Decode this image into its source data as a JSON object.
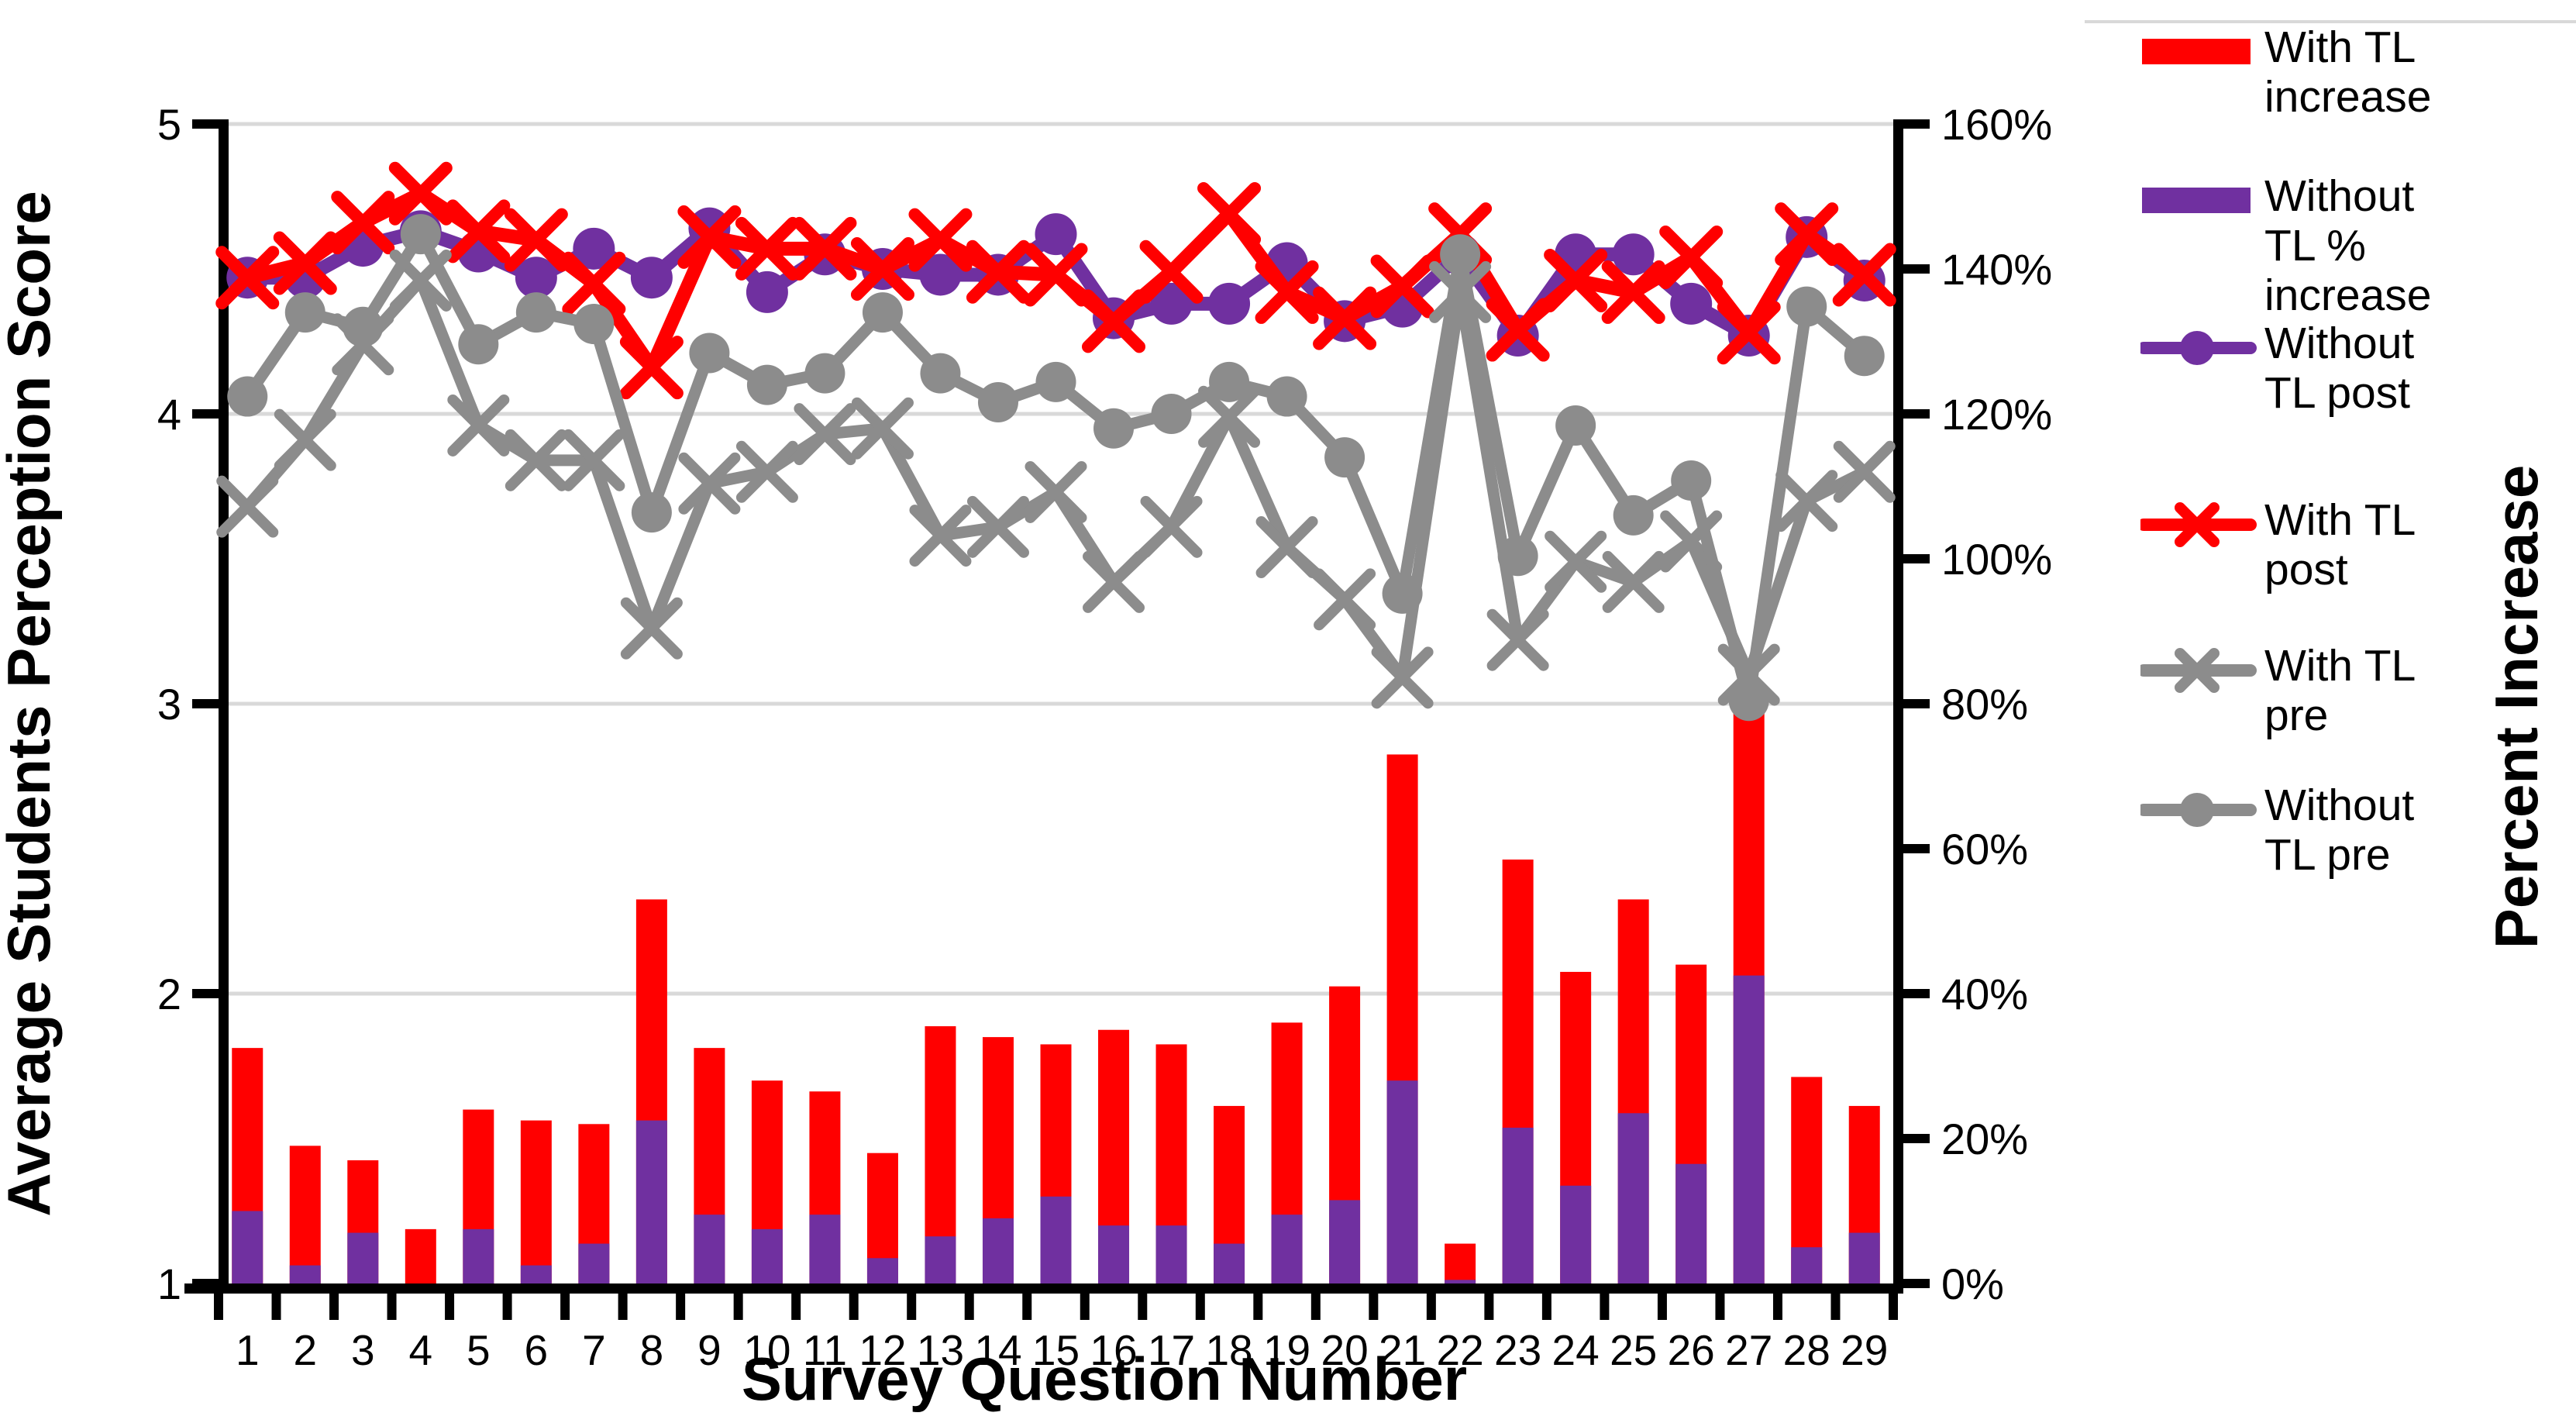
{
  "chart_data": {
    "type": "combo-bar-line",
    "title": "",
    "xlabel": "Survey Question Number",
    "ylabel_left": "Average Students Perception Score",
    "ylabel_right": "Percent Increase",
    "x_categories": [
      "1",
      "2",
      "3",
      "4",
      "5",
      "6",
      "7",
      "8",
      "9",
      "10",
      "11",
      "12",
      "13",
      "14",
      "15",
      "16",
      "17",
      "18",
      "19",
      "20",
      "21",
      "22",
      "23",
      "24",
      "25",
      "26",
      "27",
      "28",
      "29"
    ],
    "y_left": {
      "min": 1,
      "max": 5,
      "tick_labels": [
        "1",
        "2",
        "3",
        "4",
        "5"
      ],
      "grid_on": [
        2,
        3,
        4,
        5
      ]
    },
    "y_right": {
      "min": 0,
      "max": 160,
      "tick_step": 20,
      "tick_labels": [
        "0%",
        "20%",
        "40%",
        "60%",
        "80%",
        "100%",
        "120%",
        "140%",
        "160%"
      ]
    },
    "legend_position": "right",
    "colors": {
      "red": "#FF0000",
      "purple": "#7030A0",
      "gray": "#8C8C8C",
      "gridline": "#D9D9D9",
      "axis": "#000000"
    },
    "series": [
      {
        "key": "with-tl-increase",
        "name": "With TL increase",
        "label_lines": "With TL\nincrease",
        "type": "bar",
        "axis": "right",
        "color": "#FF0000",
        "values": [
          32.5,
          19,
          17,
          7.5,
          24,
          22.5,
          22,
          53,
          32.5,
          28,
          26.5,
          18,
          35.5,
          34,
          33,
          35,
          33,
          24.5,
          36,
          41,
          73,
          5.5,
          58.5,
          43,
          53,
          44,
          82,
          28.5,
          24.5
        ]
      },
      {
        "key": "without-tl-increase",
        "name": "Without TL % increase",
        "label_lines": "Without\nTL %\nincrease",
        "type": "bar",
        "axis": "right",
        "color": "#7030A0",
        "values": [
          10,
          2.5,
          7,
          0,
          7.5,
          2.5,
          5.5,
          22.5,
          9.5,
          7.5,
          9.5,
          3.5,
          6.5,
          9,
          12,
          8,
          8,
          5.5,
          9.5,
          11.5,
          28,
          0.5,
          21.5,
          13.5,
          23.5,
          16.5,
          42.5,
          5,
          7
        ]
      },
      {
        "key": "without-tl-post",
        "name": "Without TL post",
        "label_lines": "Without\nTL post",
        "type": "line",
        "marker": "circle",
        "axis": "left",
        "color": "#7030A0",
        "values": [
          4.47,
          4.47,
          4.58,
          4.63,
          4.56,
          4.47,
          4.57,
          4.47,
          4.64,
          4.42,
          4.55,
          4.5,
          4.48,
          4.48,
          4.62,
          4.33,
          4.38,
          4.38,
          4.52,
          4.32,
          4.37,
          4.55,
          4.27,
          4.55,
          4.55,
          4.38,
          4.27,
          4.61,
          4.46
        ]
      },
      {
        "key": "with-tl-post",
        "name": "With TL post",
        "label_lines": "With TL\npost",
        "type": "line",
        "marker": "x",
        "axis": "left",
        "color": "#FF0000",
        "values": [
          4.47,
          4.52,
          4.66,
          4.76,
          4.63,
          4.6,
          4.45,
          4.16,
          4.61,
          4.57,
          4.57,
          4.5,
          4.6,
          4.49,
          4.48,
          4.32,
          4.49,
          4.69,
          4.42,
          4.33,
          4.44,
          4.62,
          4.29,
          4.46,
          4.42,
          4.54,
          4.28,
          4.62,
          4.48
        ]
      },
      {
        "key": "with-tl-pre",
        "name": "With TL pre",
        "label_lines": "With TL\npre",
        "type": "line",
        "marker": "x",
        "axis": "left",
        "color": "#8C8C8C",
        "values": [
          3.68,
          3.91,
          4.24,
          4.46,
          3.96,
          3.84,
          3.84,
          3.26,
          3.76,
          3.8,
          3.93,
          3.95,
          3.58,
          3.61,
          3.73,
          3.42,
          3.61,
          3.99,
          3.54,
          3.36,
          3.09,
          4.42,
          3.22,
          3.49,
          3.42,
          3.56,
          3.1,
          3.7,
          3.8
        ]
      },
      {
        "key": "without-tl-pre",
        "name": "Without TL pre",
        "label_lines": "Without\nTL pre",
        "type": "line",
        "marker": "circle",
        "axis": "left",
        "color": "#8C8C8C",
        "values": [
          4.06,
          4.35,
          4.3,
          4.62,
          4.24,
          4.35,
          4.31,
          3.66,
          4.21,
          4.1,
          4.14,
          4.35,
          4.14,
          4.04,
          4.11,
          3.95,
          4.0,
          4.11,
          4.06,
          3.85,
          3.38,
          4.55,
          3.51,
          3.96,
          3.65,
          3.77,
          3.01,
          4.37,
          4.2
        ]
      }
    ],
    "legend_order": [
      "With TL increase",
      "Without TL % increase",
      "Without TL post",
      "With TL post",
      "With TL pre",
      "Without TL pre"
    ]
  }
}
